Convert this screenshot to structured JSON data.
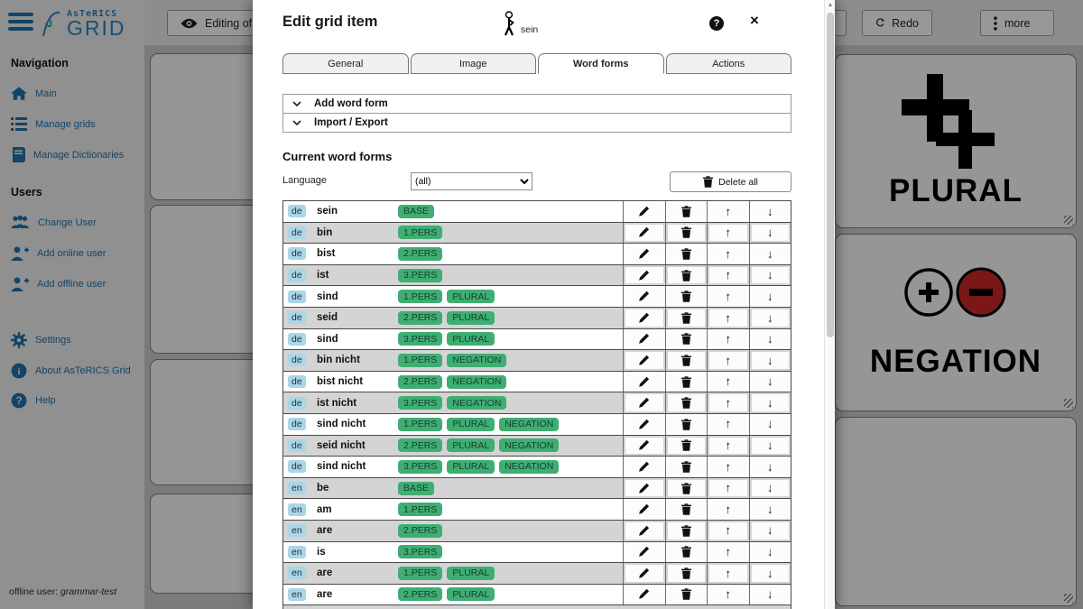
{
  "topbar": {
    "editing_label": "Editing of",
    "redo_label": "Redo",
    "more_label": "more"
  },
  "sidebar": {
    "logo_small": "AsTeRICS",
    "logo_large": "GRID",
    "nav_heading": "Navigation",
    "nav_items": [
      {
        "label": "Main"
      },
      {
        "label": "Manage grids"
      },
      {
        "label": "Manage Dictionaries"
      }
    ],
    "users_heading": "Users",
    "user_items": [
      {
        "label": "Change User"
      },
      {
        "label": "Add online user"
      },
      {
        "label": "Add offline user"
      }
    ],
    "bottom_items": [
      {
        "label": "Settings"
      },
      {
        "label": "About AsTeRICS Grid"
      },
      {
        "label": "Help"
      }
    ],
    "footer_prefix": "offline user: ",
    "footer_user": "grammar-test"
  },
  "background_grid": {
    "cells": [
      {
        "label": "PLURAL",
        "icon": "double-plus"
      },
      {
        "label": "NEGATION",
        "icon": "plus-minus-circles"
      }
    ]
  },
  "modal": {
    "title": "Edit grid item",
    "item_name": "sein",
    "help_label": "?",
    "close_label": "×",
    "tabs": [
      {
        "label": "General"
      },
      {
        "label": "Image"
      },
      {
        "label": "Word forms"
      },
      {
        "label": "Actions"
      }
    ],
    "accordions": [
      {
        "label": "Add word form"
      },
      {
        "label": "Import / Export"
      }
    ],
    "current_heading": "Current word forms",
    "language_label": "Language",
    "language_value": "(all)",
    "delete_all_label": "Delete all",
    "word_forms": [
      {
        "lang": "de",
        "word": "sein",
        "tags": [
          "BASE"
        ]
      },
      {
        "lang": "de",
        "word": "bin",
        "tags": [
          "1.PERS"
        ]
      },
      {
        "lang": "de",
        "word": "bist",
        "tags": [
          "2.PERS"
        ]
      },
      {
        "lang": "de",
        "word": "ist",
        "tags": [
          "3.PERS"
        ]
      },
      {
        "lang": "de",
        "word": "sind",
        "tags": [
          "1.PERS",
          "PLURAL"
        ]
      },
      {
        "lang": "de",
        "word": "seid",
        "tags": [
          "2.PERS",
          "PLURAL"
        ]
      },
      {
        "lang": "de",
        "word": "sind",
        "tags": [
          "3.PERS",
          "PLURAL"
        ]
      },
      {
        "lang": "de",
        "word": "bin nicht",
        "tags": [
          "1.PERS",
          "NEGATION"
        ]
      },
      {
        "lang": "de",
        "word": "bist nicht",
        "tags": [
          "2.PERS",
          "NEGATION"
        ]
      },
      {
        "lang": "de",
        "word": "ist nicht",
        "tags": [
          "3.PERS",
          "NEGATION"
        ]
      },
      {
        "lang": "de",
        "word": "sind nicht",
        "tags": [
          "1.PERS",
          "PLURAL",
          "NEGATION"
        ]
      },
      {
        "lang": "de",
        "word": "seid nicht",
        "tags": [
          "2.PERS",
          "PLURAL",
          "NEGATION"
        ]
      },
      {
        "lang": "de",
        "word": "sind nicht",
        "tags": [
          "3.PERS",
          "PLURAL",
          "NEGATION"
        ]
      },
      {
        "lang": "en",
        "word": "be",
        "tags": [
          "BASE"
        ]
      },
      {
        "lang": "en",
        "word": "am",
        "tags": [
          "1.PERS"
        ]
      },
      {
        "lang": "en",
        "word": "are",
        "tags": [
          "2.PERS"
        ]
      },
      {
        "lang": "en",
        "word": "is",
        "tags": [
          "3.PERS"
        ]
      },
      {
        "lang": "en",
        "word": "are",
        "tags": [
          "1.PERS",
          "PLURAL"
        ]
      },
      {
        "lang": "en",
        "word": "are",
        "tags": [
          "2.PERS",
          "PLURAL"
        ]
      }
    ]
  },
  "colors": {
    "tag_green": "#3fae73",
    "lang_blue": "#a9d6e8",
    "negation_red": "#c62828",
    "sidebar_blue": "#1e6ea7"
  }
}
